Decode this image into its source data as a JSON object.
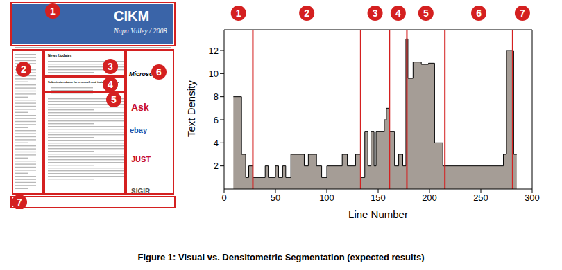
{
  "caption": "Figure 1: Visual vs. Densitometric Segmentation (expected results)",
  "screenshot": {
    "header": {
      "title": "CIKM",
      "subtitle": "Napa Valley / 2008"
    },
    "news_heading": "News Updates",
    "submission_heading": "Submission dates for research and industry papers",
    "sponsors": [
      "Microsoft",
      "Ask",
      "ebay",
      "JUST",
      "SIGIR"
    ],
    "regions": [
      1,
      2,
      3,
      4,
      5,
      6,
      7
    ]
  },
  "chart_data": {
    "type": "histogram",
    "xlabel": "Line Number",
    "ylabel": "Text Density",
    "bins": [
      9,
      17,
      21,
      24,
      28,
      40,
      43,
      50,
      53,
      57,
      60,
      65,
      78,
      82,
      90,
      95,
      100,
      105,
      115,
      120,
      128,
      133,
      137,
      140,
      143,
      146,
      148,
      152,
      156,
      158,
      161,
      166,
      170,
      174,
      177,
      179,
      184,
      192,
      199,
      205,
      213,
      272,
      275,
      282,
      285
    ],
    "counts": [
      8,
      3,
      1,
      2,
      1,
      2,
      1,
      2,
      1,
      2,
      1,
      3,
      2,
      3,
      2,
      1,
      2,
      2,
      3,
      2,
      3,
      1,
      5,
      2,
      5,
      2,
      5,
      5,
      6,
      7,
      5,
      2,
      3,
      2,
      13,
      9.6,
      11,
      10.8,
      10.9,
      4,
      2,
      3,
      12,
      3
    ],
    "color": "#a59d96",
    "xlim": [
      0,
      300
    ],
    "xticks": [
      0,
      50,
      100,
      150,
      200,
      250,
      300
    ],
    "ylim": [
      0,
      13.8
    ],
    "yticks": [
      2,
      4,
      6,
      8,
      10,
      12
    ],
    "segment_boundaries": [
      28,
      133,
      161,
      178,
      215,
      281
    ],
    "boundary_color": "#d42020",
    "segment_labels": [
      1,
      2,
      3,
      4,
      5,
      6,
      7
    ]
  }
}
